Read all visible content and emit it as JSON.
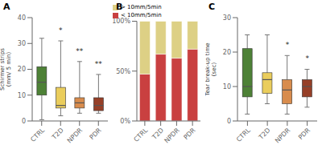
{
  "chart_data": [
    {
      "type": "box",
      "title": "A",
      "ylabel": "Schirmer strips\n(mm/ 5 min)",
      "categories": [
        "CTRL",
        "T2D",
        "NPDR",
        "PDR"
      ],
      "colors": [
        "#3a7320",
        "#e8c84a",
        "#d4803a",
        "#8b2a10"
      ],
      "boxes": [
        {
          "med": 15,
          "q1": 10,
          "q3": 21,
          "whislo": 0.5,
          "whishi": 32
        },
        {
          "med": 6,
          "q1": 5,
          "q3": 13,
          "whislo": 2,
          "whishi": 31
        },
        {
          "med": 7,
          "q1": 5,
          "q3": 9,
          "whislo": 3,
          "whishi": 23
        },
        {
          "med": 6,
          "q1": 4,
          "q3": 9,
          "whislo": 3,
          "whishi": 18
        }
      ],
      "annotations": [
        {
          "category": "T2D",
          "y": 32.5,
          "text": "*"
        },
        {
          "category": "NPDR",
          "y": 24.5,
          "text": "**"
        },
        {
          "category": "PDR",
          "y": 19.5,
          "text": "**"
        }
      ],
      "ylim": [
        0,
        40
      ],
      "yticks": [
        0,
        10,
        20,
        30,
        40
      ],
      "grid": false
    },
    {
      "type": "bar",
      "stacked": true,
      "title": "B",
      "categories": [
        "CTRL",
        "T2D",
        "NPDR",
        "PDR"
      ],
      "series": [
        {
          "name": "< 10mm/5min",
          "color": "#c94040",
          "values": [
            47,
            67,
            63,
            72
          ]
        },
        {
          "name": "> 10mm/5min",
          "color": "#ddd085",
          "values": [
            53,
            33,
            37,
            28
          ]
        }
      ],
      "ylim": [
        0,
        100
      ],
      "yticks": [
        {
          "value": 0,
          "label": "0%"
        },
        {
          "value": 50,
          "label": "50%"
        },
        {
          "value": 100,
          "label": "100%"
        }
      ],
      "legend": "upper right",
      "grid": false
    },
    {
      "type": "box",
      "title": "C",
      "ylabel": "Tear break-up time\n(sec)",
      "categories": [
        "CTRL",
        "T2D",
        "NPDR",
        "PDR"
      ],
      "colors": [
        "#3a7320",
        "#e8c84a",
        "#d4803a",
        "#8b2a10"
      ],
      "boxes": [
        {
          "med": 10,
          "q1": 7,
          "q3": 21,
          "whislo": 2,
          "whishi": 25
        },
        {
          "med": 12,
          "q1": 8,
          "q3": 14,
          "whislo": 5,
          "whishi": 25
        },
        {
          "med": 9,
          "q1": 5,
          "q3": 12,
          "whislo": 2,
          "whishi": 19
        },
        {
          "med": 10,
          "q1": 7,
          "q3": 12,
          "whislo": 4,
          "whishi": 15
        }
      ],
      "annotations": [
        {
          "category": "NPDR",
          "y": 20.3,
          "text": "*"
        },
        {
          "category": "PDR",
          "y": 16.3,
          "text": "*"
        }
      ],
      "ylim": [
        0,
        30
      ],
      "yticks": [
        0,
        10,
        20,
        30
      ],
      "grid": false
    }
  ]
}
